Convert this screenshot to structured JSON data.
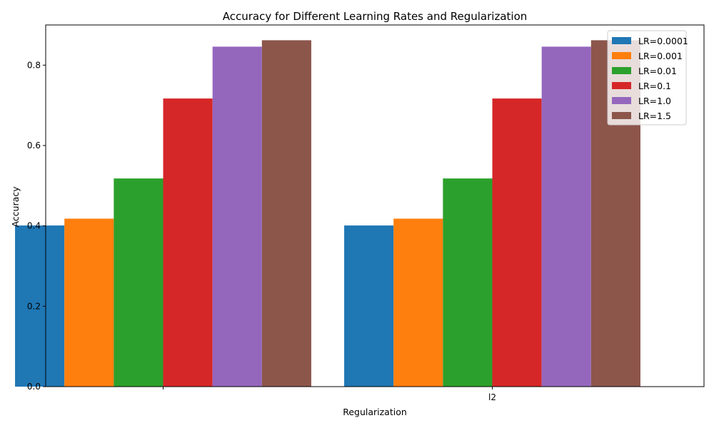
{
  "chart_data": {
    "type": "bar",
    "title": "Accuracy for Different Learning Rates and Regularization",
    "xlabel": "Regularization",
    "ylabel": "Accuracy",
    "categories": [
      "",
      "l2"
    ],
    "ylim": [
      0,
      0.9
    ],
    "yticks": [
      0.0,
      0.2,
      0.4,
      0.6,
      0.8
    ],
    "grid": false,
    "legend_position": "top-right",
    "series": [
      {
        "name": "LR=0.0001",
        "color": "#1f77b4",
        "values": [
          0.401,
          0.401
        ]
      },
      {
        "name": "LR=0.001",
        "color": "#ff7f0e",
        "values": [
          0.418,
          0.418
        ]
      },
      {
        "name": "LR=0.01",
        "color": "#2ca02c",
        "values": [
          0.518,
          0.518
        ]
      },
      {
        "name": "LR=0.1",
        "color": "#d62728",
        "values": [
          0.717,
          0.717
        ]
      },
      {
        "name": "LR=1.0",
        "color": "#9467bd",
        "values": [
          0.846,
          0.846
        ]
      },
      {
        "name": "LR=1.5",
        "color": "#8c564b",
        "values": [
          0.862,
          0.862
        ]
      }
    ]
  }
}
